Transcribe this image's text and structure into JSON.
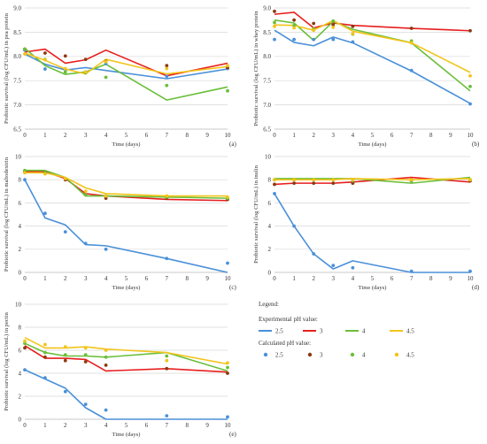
{
  "figure": {
    "legend": {
      "title": "Legend:",
      "experimental_heading": "Experimental pH value:",
      "calculated_heading": "Calculated pH value:",
      "entries": [
        {
          "label": "2.5",
          "color": "#4a90d9",
          "calc_color": "#4a90d9"
        },
        {
          "label": "3",
          "color": "#e81e1e",
          "calc_color": "#8b3a0f"
        },
        {
          "label": "4",
          "color": "#6abf3a",
          "calc_color": "#6abf3a"
        },
        {
          "label": "4.5",
          "color": "#f2c41a",
          "calc_color": "#f2c41a"
        }
      ]
    }
  },
  "chart_data": [
    {
      "id": "a",
      "type": "line",
      "letter": "(a)",
      "xlabel": "Time (days)",
      "ylabel": "Probiotic survival (log CFU/mL) in pea protein",
      "xlim": [
        0,
        10
      ],
      "ylim": [
        6.5,
        9.0
      ],
      "xticks": [
        "0",
        "1",
        "2",
        "3",
        "4",
        "5",
        "6",
        "7",
        "8",
        "9",
        "10"
      ],
      "yticks": [
        "6.5",
        "7.0",
        "7.5",
        "8.0",
        "8.5",
        "9.0"
      ],
      "x": [
        0,
        1,
        2,
        3,
        4,
        7,
        10
      ],
      "series": [
        {
          "name": "2.5",
          "lines": [
            8.05,
            7.84,
            7.72,
            7.77,
            7.71,
            7.54,
            7.74
          ],
          "points": [
            8.13,
            7.74,
            7.74,
            7.68,
            7.85,
            7.59,
            7.75
          ]
        },
        {
          "name": "3",
          "lines": [
            8.09,
            8.15,
            7.86,
            7.93,
            8.13,
            7.6,
            7.86
          ],
          "points": [
            8.15,
            8.07,
            8.01,
            7.94,
            7.9,
            7.81,
            7.77
          ]
        },
        {
          "name": "4",
          "lines": [
            8.17,
            7.81,
            7.63,
            7.68,
            7.84,
            7.1,
            7.37
          ],
          "points": [
            8.15,
            7.94,
            7.68,
            7.66,
            7.57,
            7.4,
            7.29
          ]
        },
        {
          "name": "4.5",
          "lines": [
            8.07,
            7.92,
            7.74,
            7.64,
            7.94,
            7.64,
            7.79
          ],
          "points": [
            8.05,
            7.93,
            7.75,
            7.68,
            7.89,
            7.75,
            7.81
          ]
        }
      ]
    },
    {
      "id": "b",
      "type": "line",
      "letter": "(b)",
      "xlabel": "Time (days)",
      "ylabel": "Probiotic survival (log CFU/mL) in whey protein",
      "xlim": [
        0,
        10
      ],
      "ylim": [
        6.5,
        9.0
      ],
      "xticks": [
        "0",
        "1",
        "2",
        "3",
        "4",
        "5",
        "6",
        "7",
        "8",
        "9",
        "10"
      ],
      "yticks": [
        "6.5",
        "7.0",
        "7.5",
        "8.0",
        "8.5",
        "9.0"
      ],
      "x": [
        0,
        1,
        2,
        3,
        4,
        7,
        10
      ],
      "series": [
        {
          "name": "2.5",
          "lines": [
            8.54,
            8.29,
            8.22,
            8.4,
            8.28,
            7.7,
            7.03
          ],
          "points": [
            8.35,
            8.35,
            8.35,
            8.35,
            8.3,
            7.71,
            7.02
          ]
        },
        {
          "name": "3",
          "lines": [
            8.87,
            8.91,
            8.59,
            8.69,
            8.64,
            8.58,
            8.53
          ],
          "points": [
            8.93,
            8.75,
            8.68,
            8.65,
            8.62,
            8.58,
            8.53
          ]
        },
        {
          "name": "4",
          "lines": [
            8.75,
            8.69,
            8.33,
            8.72,
            8.56,
            8.28,
            7.29
          ],
          "points": [
            8.7,
            8.64,
            8.57,
            8.73,
            8.46,
            8.32,
            7.38
          ]
        },
        {
          "name": "4.5",
          "lines": [
            8.65,
            8.64,
            8.54,
            8.74,
            8.52,
            8.28,
            7.67
          ],
          "points": [
            8.62,
            8.59,
            8.54,
            8.6,
            8.47,
            8.28,
            7.6
          ]
        }
      ]
    },
    {
      "id": "c",
      "type": "line",
      "letter": "(c)",
      "xlabel": "Time (days)",
      "ylabel": "Probiotic survival (log CFU/mL) in maltodextrin",
      "xlim": [
        0,
        10
      ],
      "ylim": [
        0,
        10
      ],
      "xticks": [
        "0",
        "1",
        "2",
        "3",
        "4",
        "5",
        "6",
        "7",
        "8",
        "9",
        "10"
      ],
      "yticks": [
        "0",
        "2",
        "4",
        "6",
        "8",
        "10"
      ],
      "x": [
        0,
        1,
        2,
        3,
        4,
        7,
        10
      ],
      "series": [
        {
          "name": "2.5",
          "lines": [
            8.0,
            4.7,
            4.1,
            2.4,
            2.3,
            1.2,
            0.0
          ],
          "points": [
            8.0,
            5.1,
            3.5,
            2.5,
            2.0,
            1.2,
            0.8
          ]
        },
        {
          "name": "3",
          "lines": [
            8.7,
            8.7,
            8.1,
            6.8,
            6.6,
            6.3,
            6.2
          ],
          "points": [
            8.7,
            8.6,
            8.0,
            6.7,
            6.4,
            6.4,
            6.3
          ]
        },
        {
          "name": "4",
          "lines": [
            8.8,
            8.8,
            8.2,
            6.6,
            6.6,
            6.5,
            6.4
          ],
          "points": [
            8.8,
            8.6,
            8.1,
            6.7,
            6.6,
            6.5,
            6.4
          ]
        },
        {
          "name": "4.5",
          "lines": [
            8.6,
            8.6,
            8.2,
            7.3,
            6.8,
            6.6,
            6.6
          ],
          "points": [
            8.6,
            8.5,
            8.1,
            7.0,
            6.6,
            6.6,
            6.5
          ]
        }
      ]
    },
    {
      "id": "d",
      "type": "line",
      "letter": "(d)",
      "xlabel": "Time (days)",
      "ylabel": "Probiotic survival (log CFU/mL) in inulin",
      "xlim": [
        0,
        10
      ],
      "ylim": [
        0,
        10
      ],
      "xticks": [
        "0",
        "1",
        "2",
        "3",
        "4",
        "5",
        "6",
        "7",
        "8",
        "9",
        "10"
      ],
      "yticks": [
        "0",
        "2",
        "4",
        "6",
        "8",
        "10"
      ],
      "x": [
        0,
        1,
        2,
        3,
        4,
        7,
        10
      ],
      "series": [
        {
          "name": "2.5",
          "lines": [
            6.8,
            4.0,
            1.6,
            0.3,
            1.0,
            0.0,
            0.0
          ],
          "points": [
            6.8,
            4.0,
            1.6,
            0.6,
            0.4,
            0.1,
            0.1
          ]
        },
        {
          "name": "3",
          "lines": [
            7.6,
            7.7,
            7.7,
            7.7,
            7.8,
            8.2,
            7.8
          ],
          "points": [
            7.6,
            7.7,
            7.7,
            7.7,
            7.7,
            7.9,
            7.9
          ]
        },
        {
          "name": "4",
          "lines": [
            8.1,
            8.1,
            8.1,
            8.1,
            8.1,
            7.7,
            8.2
          ],
          "points": [
            8.0,
            8.0,
            8.0,
            8.0,
            7.9,
            7.9,
            8.0
          ]
        },
        {
          "name": "4.5",
          "lines": [
            8.0,
            8.0,
            8.0,
            8.0,
            8.1,
            8.0,
            8.1
          ],
          "points": [
            8.0,
            8.0,
            8.0,
            8.0,
            8.0,
            8.0,
            8.0
          ]
        }
      ]
    },
    {
      "id": "e",
      "type": "line",
      "letter": "(e)",
      "xlabel": "Time (days)",
      "ylabel": "Probiotic survival (log CFU/mL) in pectin",
      "xlim": [
        0,
        10
      ],
      "ylim": [
        0,
        10
      ],
      "xticks": [
        "0",
        "1",
        "2",
        "3",
        "4",
        "5",
        "6",
        "7",
        "8",
        "9",
        "10"
      ],
      "yticks": [
        "0",
        "2",
        "4",
        "6",
        "8",
        "10"
      ],
      "x": [
        0,
        1,
        2,
        3,
        4,
        7,
        10
      ],
      "series": [
        {
          "name": "2.5",
          "lines": [
            4.3,
            3.5,
            2.7,
            1.0,
            0.0,
            0.0,
            0.0
          ],
          "points": [
            4.3,
            3.6,
            2.4,
            1.3,
            0.8,
            0.3,
            0.2
          ]
        },
        {
          "name": "3",
          "lines": [
            6.4,
            5.3,
            5.3,
            5.2,
            4.2,
            4.4,
            4.1
          ],
          "points": [
            6.2,
            5.4,
            5.1,
            5.0,
            4.7,
            4.4,
            4.0
          ]
        },
        {
          "name": "4",
          "lines": [
            6.6,
            5.8,
            5.5,
            5.5,
            5.4,
            5.8,
            4.2
          ],
          "points": [
            6.6,
            5.8,
            5.6,
            5.6,
            5.4,
            5.5,
            4.5
          ]
        },
        {
          "name": "4.5",
          "lines": [
            7.1,
            6.2,
            6.2,
            6.3,
            6.1,
            5.8,
            4.8
          ],
          "points": [
            6.8,
            6.5,
            6.3,
            6.2,
            6.0,
            5.1,
            4.9
          ]
        }
      ]
    }
  ]
}
